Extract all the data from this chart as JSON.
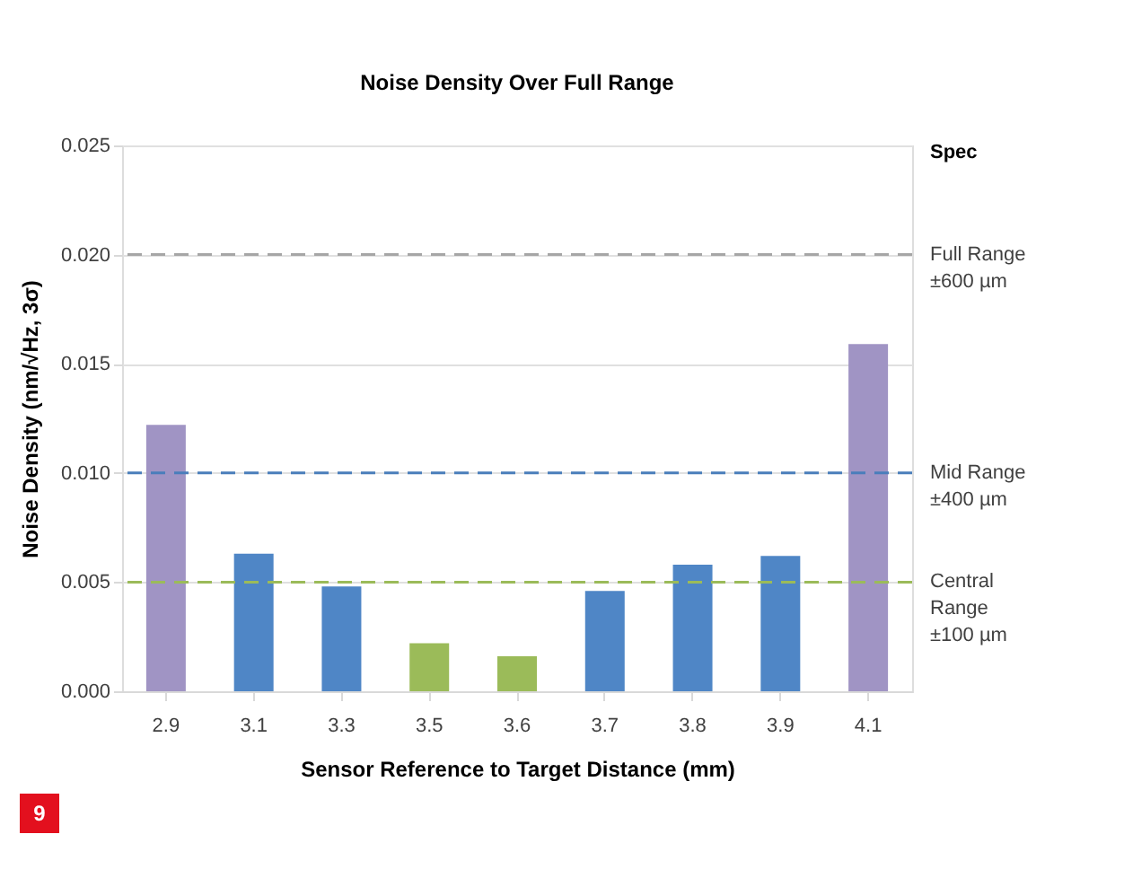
{
  "chart_data": {
    "type": "bar",
    "title": "Noise Density Over Full Range",
    "xlabel": "Sensor Reference to Target Distance (mm)",
    "ylabel": "Noise Density  (nm/√Hz, 3σ)",
    "categories": [
      "2.9",
      "3.1",
      "3.3",
      "3.5",
      "3.6",
      "3.7",
      "3.8",
      "3.9",
      "4.1"
    ],
    "values": [
      0.0122,
      0.0063,
      0.0048,
      0.0022,
      0.0016,
      0.0046,
      0.0058,
      0.0062,
      0.0159
    ],
    "colors": [
      "#a094c4",
      "#4f86c6",
      "#4f86c6",
      "#9bbb59",
      "#9bbb59",
      "#4f86c6",
      "#4f86c6",
      "#4f86c6",
      "#a094c4"
    ],
    "ylim": [
      0,
      0.025
    ],
    "yticks": [
      {
        "value": 0,
        "label": "0.000"
      },
      {
        "value": 0.005,
        "label": "0.005"
      },
      {
        "value": 0.01,
        "label": "0.010"
      },
      {
        "value": 0.015,
        "label": "0.015"
      },
      {
        "value": 0.02,
        "label": "0.020"
      },
      {
        "value": 0.025,
        "label": "0.025"
      }
    ],
    "grid": "y",
    "ref_lines": [
      {
        "axis": "y",
        "value": 0.02,
        "label": "Full Range\n±600 µm",
        "color": "#a6a6a6",
        "line_style": "dashed"
      },
      {
        "axis": "y",
        "value": 0.01,
        "label": "Mid Range\n±400 µm",
        "color": "#4a7ebb",
        "line_style": "dashed"
      },
      {
        "axis": "y",
        "value": 0.005,
        "label": "Central\nRange\n±100 µm",
        "color": "#9bbb59",
        "line_style": "dashed"
      }
    ],
    "annotations": [
      "Spec",
      "9"
    ]
  }
}
